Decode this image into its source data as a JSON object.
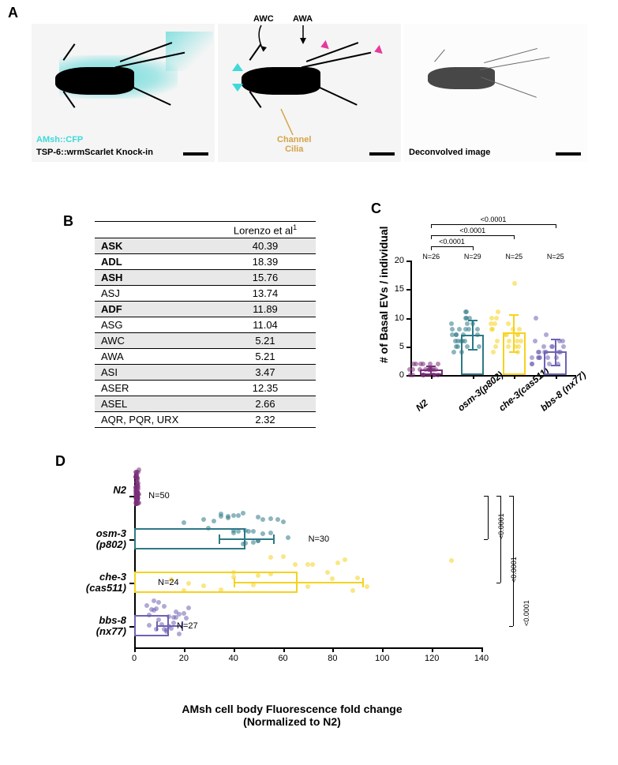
{
  "panelA": {
    "label": "A",
    "micrograph1": {
      "annot_top": "AMsh::CFP",
      "annot_color": "#5ad7d7",
      "annot_bottom": "TSP-6::wrmScarlet Knock-in"
    },
    "micrograph2": {
      "label_awc": "AWC",
      "label_awa": "AWA",
      "label_channel": "Channel\nCilia",
      "channel_color": "#d4a347",
      "arrowhead_cyan": "#3fd9d9",
      "arrowhead_pink": "#e6399b"
    },
    "micrograph3": {
      "label": "Deconvolved image"
    }
  },
  "panelB": {
    "label": "B",
    "header_ref": "Lorenzo et al",
    "header_sup": "1",
    "rows": [
      {
        "label": "ASK",
        "val": "40.39",
        "bold": true
      },
      {
        "label": "ADL",
        "val": "18.39",
        "bold": true
      },
      {
        "label": "ASH",
        "val": "15.76",
        "bold": true
      },
      {
        "label": "ASJ",
        "val": "13.74",
        "bold": false
      },
      {
        "label": "ADF",
        "val": "11.89",
        "bold": true
      },
      {
        "label": "ASG",
        "val": "11.04",
        "bold": false
      },
      {
        "label": "AWC",
        "val": "5.21",
        "bold": false
      },
      {
        "label": "AWA",
        "val": "5.21",
        "bold": false
      },
      {
        "label": "ASI",
        "val": "3.47",
        "bold": false
      },
      {
        "label": "ASER",
        "val": "12.35",
        "bold": false
      },
      {
        "label": "ASEL",
        "val": "2.66",
        "bold": false
      },
      {
        "label": "AQR, PQR, URX",
        "val": "2.32",
        "bold": false
      }
    ]
  },
  "panelC": {
    "label": "C",
    "ylabel": "# of Basal EVs / individual",
    "ylim": [
      0,
      20
    ],
    "ytick_step": 5,
    "groups": [
      {
        "name": "N2",
        "n": "N=26",
        "mean": 0.9,
        "err": 0.8,
        "color": "#7a2f7a",
        "points": [
          0,
          0,
          0,
          0,
          1,
          1,
          1,
          1,
          1,
          2,
          2,
          2,
          0,
          0,
          1,
          1,
          2,
          2,
          0,
          1,
          1,
          1,
          0,
          2,
          1,
          0
        ]
      },
      {
        "name": "osm-3(p802)",
        "n": "N=29",
        "mean": 7.1,
        "err": 2.6,
        "color": "#2e7986",
        "points": [
          5,
          5,
          6,
          6,
          7,
          7,
          7,
          8,
          8,
          8,
          9,
          9,
          10,
          10,
          11,
          4,
          5,
          6,
          6,
          7,
          8,
          4,
          9,
          5,
          10,
          7,
          6,
          8,
          11
        ]
      },
      {
        "name": "che-3(cas511)",
        "n": "N=25",
        "mean": 7.4,
        "err": 3.2,
        "color": "#f6d21f",
        "points": [
          4,
          5,
          5,
          6,
          6,
          7,
          7,
          8,
          8,
          9,
          10,
          10,
          11,
          5,
          6,
          7,
          8,
          9,
          16,
          4,
          5,
          7,
          6,
          8,
          9
        ]
      },
      {
        "name": "bbs-8 (nx77)",
        "n": "N=25",
        "mean": 4.1,
        "err": 2.3,
        "color": "#6d63b3",
        "points": [
          2,
          2,
          3,
          3,
          3,
          4,
          4,
          4,
          5,
          5,
          6,
          6,
          2,
          3,
          4,
          5,
          6,
          7,
          10,
          3,
          4,
          5,
          2,
          3,
          4
        ]
      }
    ],
    "sig": [
      {
        "from": 0,
        "to": 1,
        "p": "<0.0001"
      },
      {
        "from": 0,
        "to": 2,
        "p": "<0.0001"
      },
      {
        "from": 0,
        "to": 3,
        "p": "<0.0001"
      }
    ]
  },
  "panelD": {
    "label": "D",
    "xlabel_line1": "AMsh cell body Fluorescence fold change",
    "xlabel_line2": "(Normalized to N2)",
    "xlim": [
      0,
      140
    ],
    "xtick_step": 20,
    "groups": [
      {
        "name": "N2",
        "sub": "",
        "n": "N=50",
        "mean": 1,
        "err": 0.5,
        "color": "#7a2f7a",
        "points": [
          0.5,
          0.6,
          0.7,
          0.8,
          0.9,
          1,
          1,
          1,
          1.1,
          1.2,
          1.3,
          1.4,
          1.5,
          1.6,
          1.7,
          2,
          2,
          0.5,
          0.6,
          0.8,
          1,
          1.2,
          1.5,
          0.5,
          0.9,
          1,
          1.3,
          1.8,
          0.6,
          0.7,
          0.9,
          1.1,
          1.4,
          1.6,
          0.5,
          1.1,
          1.3,
          1.5,
          0.8,
          1,
          1.2,
          1.4,
          0.6,
          0.9,
          1.1,
          1.3,
          0.7,
          1,
          1.2,
          1.5
        ]
      },
      {
        "name": "osm-3",
        "sub": "(p802)",
        "n": "N=30",
        "mean": 45,
        "err": 11,
        "color": "#2e7986",
        "points": [
          20,
          28,
          30,
          32,
          35,
          38,
          40,
          40,
          42,
          44,
          45,
          46,
          48,
          50,
          50,
          52,
          55,
          58,
          60,
          42,
          44,
          38,
          50,
          55,
          48,
          52,
          40,
          45,
          62,
          35
        ]
      },
      {
        "name": "che-3",
        "sub": "(cas511)",
        "n": "N=24",
        "mean": 66,
        "err": 26,
        "color": "#f6d21f",
        "points": [
          15,
          22,
          28,
          35,
          40,
          48,
          55,
          60,
          65,
          70,
          72,
          78,
          82,
          88,
          90,
          94,
          20,
          50,
          55,
          70,
          80,
          85,
          40,
          128
        ]
      },
      {
        "name": "bbs-8",
        "sub": "(nx77)",
        "n": "N=27",
        "mean": 14,
        "err": 5,
        "color": "#6d63b3",
        "points": [
          5,
          6,
          7,
          8,
          9,
          10,
          11,
          12,
          13,
          14,
          15,
          16,
          17,
          18,
          20,
          22,
          8,
          10,
          12,
          14,
          16,
          18,
          6,
          9,
          13,
          17,
          21
        ]
      }
    ],
    "sig": [
      {
        "to": 1,
        "p": "<0.0001"
      },
      {
        "to": 2,
        "p": "<0.0001"
      },
      {
        "to": 3,
        "p": "<0.0001"
      }
    ]
  }
}
